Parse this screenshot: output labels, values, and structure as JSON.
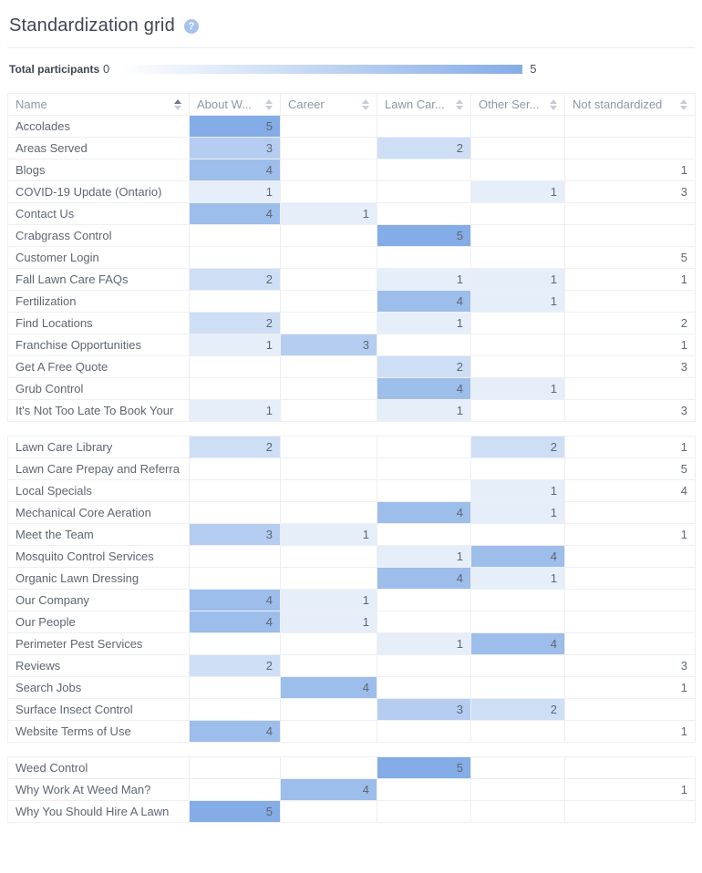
{
  "page": {
    "title": "Standardization grid",
    "help_icon": "?",
    "help_icon_color": "#a5c3ee"
  },
  "legend": {
    "label": "Total participants",
    "min": "0",
    "max": "5"
  },
  "table": {
    "max_value": 5,
    "heat_color": "#84ace6",
    "columns": [
      {
        "key": "name",
        "label": "Name",
        "sorted_ascending": true
      },
      {
        "key": "about-weed-man",
        "label": "About W...",
        "sorted_ascending": false
      },
      {
        "key": "career",
        "label": "Career",
        "sorted_ascending": false
      },
      {
        "key": "lawn-care",
        "label": "Lawn Car...",
        "sorted_ascending": false
      },
      {
        "key": "other-services",
        "label": "Other Ser...",
        "sorted_ascending": false
      },
      {
        "key": "not-standardized",
        "label": "Not standardized",
        "sorted_ascending": false
      }
    ],
    "blocks": [
      [
        {
          "name": "Accolades",
          "values": [
            5,
            null,
            null,
            null,
            null
          ]
        },
        {
          "name": "Areas Served",
          "values": [
            3,
            null,
            2,
            null,
            null
          ]
        },
        {
          "name": "Blogs",
          "values": [
            4,
            null,
            null,
            null,
            1
          ]
        },
        {
          "name": "COVID-19 Update (Ontario)",
          "values": [
            1,
            null,
            null,
            1,
            3
          ]
        },
        {
          "name": "Contact Us",
          "values": [
            4,
            1,
            null,
            null,
            null
          ]
        },
        {
          "name": "Crabgrass Control",
          "values": [
            null,
            null,
            5,
            null,
            null
          ]
        },
        {
          "name": "Customer Login",
          "values": [
            null,
            null,
            null,
            null,
            5
          ]
        },
        {
          "name": "Fall Lawn Care FAQs",
          "values": [
            2,
            null,
            1,
            1,
            1
          ]
        },
        {
          "name": "Fertilization",
          "values": [
            null,
            null,
            4,
            1,
            null
          ]
        },
        {
          "name": "Find Locations",
          "values": [
            2,
            null,
            1,
            null,
            2
          ]
        },
        {
          "name": "Franchise Opportunities",
          "values": [
            1,
            3,
            null,
            null,
            1
          ]
        },
        {
          "name": "Get A Free Quote",
          "values": [
            null,
            null,
            2,
            null,
            3
          ]
        },
        {
          "name": "Grub Control",
          "values": [
            null,
            null,
            4,
            1,
            null
          ]
        },
        {
          "name": "It's Not Too Late To Book Your",
          "values": [
            1,
            null,
            1,
            null,
            3
          ]
        }
      ],
      [
        {
          "name": "Lawn Care Library",
          "values": [
            2,
            null,
            null,
            2,
            1
          ]
        },
        {
          "name": "Lawn Care Prepay and Referra",
          "values": [
            null,
            null,
            null,
            null,
            5
          ]
        },
        {
          "name": "Local Specials",
          "values": [
            null,
            null,
            null,
            1,
            4
          ]
        },
        {
          "name": "Mechanical Core Aeration",
          "values": [
            null,
            null,
            4,
            1,
            null
          ]
        },
        {
          "name": "Meet the Team",
          "values": [
            3,
            1,
            null,
            null,
            1
          ]
        },
        {
          "name": "Mosquito Control Services",
          "values": [
            null,
            null,
            1,
            4,
            null
          ]
        },
        {
          "name": "Organic Lawn Dressing",
          "values": [
            null,
            null,
            4,
            1,
            null
          ]
        },
        {
          "name": "Our Company",
          "values": [
            4,
            1,
            null,
            null,
            null
          ]
        },
        {
          "name": "Our People",
          "values": [
            4,
            1,
            null,
            null,
            null
          ]
        },
        {
          "name": "Perimeter Pest Services",
          "values": [
            null,
            null,
            1,
            4,
            null
          ]
        },
        {
          "name": "Reviews",
          "values": [
            2,
            null,
            null,
            null,
            3
          ]
        },
        {
          "name": "Search Jobs",
          "values": [
            null,
            4,
            null,
            null,
            1
          ]
        },
        {
          "name": "Surface Insect Control",
          "values": [
            null,
            null,
            3,
            2,
            null
          ]
        },
        {
          "name": "Website Terms of Use",
          "values": [
            4,
            null,
            null,
            null,
            1
          ]
        }
      ],
      [
        {
          "name": "Weed Control",
          "values": [
            null,
            null,
            5,
            null,
            null
          ]
        },
        {
          "name": "Why Work At Weed Man?",
          "values": [
            null,
            4,
            null,
            null,
            1
          ]
        },
        {
          "name": "Why You Should Hire A Lawn",
          "values": [
            5,
            null,
            null,
            null,
            null
          ]
        }
      ]
    ]
  }
}
